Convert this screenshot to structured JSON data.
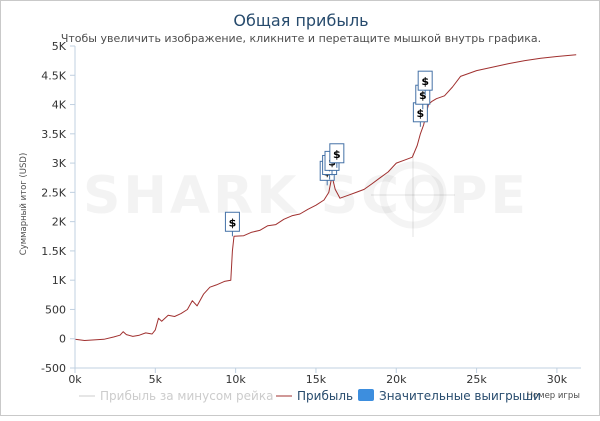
{
  "chart_data": {
    "type": "line",
    "title": "Общая прибыль",
    "subtitle": "Чтобы увеличить изображение, кликните и перетащите мышкой внутрь графика.",
    "ylabel": "Суммарный итог (USD)",
    "xlabel": "Номер игры",
    "xlim": [
      0,
      31500
    ],
    "ylim": [
      -500,
      5000
    ],
    "x_ticks": [
      0,
      5000,
      10000,
      15000,
      20000,
      25000,
      30000
    ],
    "x_tick_labels": [
      "0k",
      "5k",
      "10k",
      "15k",
      "20k",
      "25k",
      "30k"
    ],
    "y_ticks": [
      -500,
      0,
      500,
      1000,
      1500,
      2000,
      2500,
      3000,
      3500,
      4000,
      4500,
      5000
    ],
    "y_tick_labels": [
      "-500",
      "0",
      "500",
      "1K",
      "1.5K",
      "2K",
      "2.5K",
      "3K",
      "3.5K",
      "4K",
      "4.5K",
      "5K"
    ],
    "series": [
      {
        "name": "Прибыль",
        "color": "#a0302f",
        "points": [
          [
            0,
            -10
          ],
          [
            600,
            -30
          ],
          [
            1200,
            -20
          ],
          [
            1800,
            -10
          ],
          [
            2400,
            30
          ],
          [
            2800,
            60
          ],
          [
            3000,
            120
          ],
          [
            3200,
            70
          ],
          [
            3600,
            40
          ],
          [
            4000,
            60
          ],
          [
            4400,
            100
          ],
          [
            4800,
            80
          ],
          [
            5000,
            150
          ],
          [
            5200,
            350
          ],
          [
            5400,
            300
          ],
          [
            5800,
            400
          ],
          [
            6200,
            380
          ],
          [
            6600,
            430
          ],
          [
            7000,
            500
          ],
          [
            7300,
            650
          ],
          [
            7600,
            560
          ],
          [
            8000,
            760
          ],
          [
            8400,
            880
          ],
          [
            8800,
            920
          ],
          [
            9300,
            980
          ],
          [
            9700,
            1000
          ],
          [
            9800,
            1500
          ],
          [
            9900,
            1750
          ],
          [
            10500,
            1760
          ],
          [
            11000,
            1820
          ],
          [
            11500,
            1850
          ],
          [
            12000,
            1930
          ],
          [
            12500,
            1950
          ],
          [
            13000,
            2040
          ],
          [
            13500,
            2100
          ],
          [
            14000,
            2130
          ],
          [
            14500,
            2210
          ],
          [
            15000,
            2280
          ],
          [
            15500,
            2370
          ],
          [
            15800,
            2500
          ],
          [
            16000,
            2780
          ],
          [
            16200,
            2550
          ],
          [
            16500,
            2400
          ],
          [
            17000,
            2450
          ],
          [
            17500,
            2500
          ],
          [
            18000,
            2550
          ],
          [
            18500,
            2650
          ],
          [
            19000,
            2750
          ],
          [
            19500,
            2850
          ],
          [
            20000,
            3000
          ],
          [
            20500,
            3050
          ],
          [
            21000,
            3100
          ],
          [
            21300,
            3300
          ],
          [
            21500,
            3500
          ],
          [
            21700,
            3650
          ],
          [
            22000,
            4000
          ],
          [
            22200,
            4050
          ],
          [
            22500,
            4100
          ],
          [
            23000,
            4150
          ],
          [
            23500,
            4300
          ],
          [
            24000,
            4480
          ],
          [
            24500,
            4530
          ],
          [
            25000,
            4580
          ],
          [
            26000,
            4640
          ],
          [
            27000,
            4700
          ],
          [
            28000,
            4750
          ],
          [
            29000,
            4790
          ],
          [
            30000,
            4820
          ],
          [
            31200,
            4850
          ]
        ]
      },
      {
        "name": "Прибыль за минусом рейка",
        "color": "#cccccc",
        "points": []
      }
    ],
    "markers": {
      "name": "Значительные выигрыши",
      "color": "#4572a7",
      "label": "$",
      "points": [
        [
          9800,
          1750
        ],
        [
          15700,
          2620
        ],
        [
          15850,
          2720
        ],
        [
          16000,
          2790
        ],
        [
          16300,
          2920
        ],
        [
          21500,
          3620
        ],
        [
          21650,
          3920
        ],
        [
          21800,
          4160
        ]
      ]
    },
    "legend": {
      "position": "bottom",
      "items": [
        {
          "label": "Прибыль за минусом рейка",
          "color": "#cccccc",
          "kind": "line",
          "inactive": true
        },
        {
          "label": "Прибыль",
          "color": "#a0302f",
          "kind": "line",
          "inactive": false
        },
        {
          "label": "Значительные выигрыши",
          "color": "#3d8ede",
          "kind": "box",
          "inactive": false
        }
      ]
    },
    "watermark": "SHARK SCOPE",
    "grid": false
  }
}
